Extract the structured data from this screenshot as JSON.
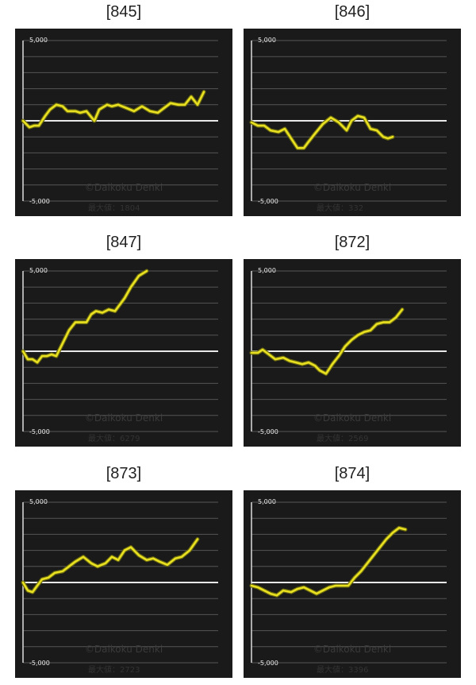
{
  "chart_data": [
    {
      "type": "line",
      "title": "[845]",
      "ylim": [
        -5000,
        5000
      ],
      "yticks": [
        "5,000",
        "-5,000"
      ],
      "watermark": "©Daikoku Denki",
      "max_label": "最大値：1804",
      "line_color": "#e8e020",
      "x": [
        0,
        8,
        14,
        20,
        28,
        34,
        42,
        50,
        56,
        66,
        72,
        80,
        90,
        96,
        106,
        112,
        120,
        130,
        140,
        150,
        160,
        170,
        178,
        186,
        196,
        204,
        212,
        220,
        228
      ],
      "y": [
        0,
        -400,
        -300,
        -300,
        300,
        700,
        1000,
        900,
        600,
        600,
        500,
        600,
        0,
        700,
        1000,
        900,
        1000,
        800,
        600,
        900,
        600,
        500,
        800,
        1100,
        1000,
        1000,
        1500,
        1000,
        1800
      ]
    },
    {
      "type": "line",
      "title": "[846]",
      "ylim": [
        -5000,
        5000
      ],
      "yticks": [
        "5,000",
        "-5,000"
      ],
      "watermark": "©Daikoku Denki",
      "max_label": "最大値：332",
      "line_color": "#e8e020",
      "x": [
        0,
        8,
        16,
        24,
        34,
        42,
        50,
        58,
        66,
        72,
        80,
        90,
        100,
        110,
        120,
        126,
        134,
        142,
        150,
        158,
        166,
        172,
        178
      ],
      "y": [
        -100,
        -300,
        -300,
        -600,
        -700,
        -500,
        -1100,
        -1700,
        -1700,
        -1300,
        -800,
        -200,
        200,
        -100,
        -600,
        0,
        300,
        200,
        -500,
        -600,
        -1000,
        -1100,
        -1000
      ]
    },
    {
      "type": "line",
      "title": "[847]",
      "ylim": [
        -5000,
        5000
      ],
      "yticks": [
        "5,000",
        "-5,000"
      ],
      "watermark": "©Daikoku Denki",
      "max_label": "最大値：6279",
      "line_color": "#e8e020",
      "x": [
        0,
        6,
        12,
        18,
        24,
        30,
        36,
        42,
        50,
        58,
        66,
        72,
        80,
        86,
        92,
        100,
        108,
        116,
        122,
        128,
        136,
        146,
        156
      ],
      "y": [
        0,
        -500,
        -500,
        -700,
        -300,
        -300,
        -200,
        -300,
        500,
        1300,
        1800,
        1800,
        1800,
        2300,
        2500,
        2400,
        2600,
        2500,
        2900,
        3300,
        4000,
        4700,
        5000
      ]
    },
    {
      "type": "line",
      "title": "[872]",
      "ylim": [
        -5000,
        5000
      ],
      "yticks": [
        "5,000",
        "-5,000"
      ],
      "watermark": "©Daikoku Denki",
      "max_label": "最大値：2569",
      "line_color": "#e8e020",
      "x": [
        0,
        8,
        14,
        22,
        30,
        40,
        48,
        56,
        64,
        72,
        80,
        86,
        94,
        102,
        110,
        118,
        126,
        134,
        142,
        150,
        158,
        166,
        174,
        182,
        190
      ],
      "y": [
        -100,
        -100,
        100,
        -200,
        -500,
        -400,
        -600,
        -700,
        -800,
        -700,
        -900,
        -1200,
        -1400,
        -800,
        -300,
        300,
        700,
        1000,
        1200,
        1300,
        1700,
        1800,
        1800,
        2100,
        2600
      ]
    },
    {
      "type": "line",
      "title": "[873]",
      "ylim": [
        -5000,
        5000
      ],
      "yticks": [
        "5,000",
        "-5,000"
      ],
      "watermark": "©Daikoku Denki",
      "max_label": "最大値：2723",
      "line_color": "#e8e020",
      "x": [
        0,
        6,
        12,
        18,
        24,
        32,
        40,
        50,
        58,
        66,
        76,
        86,
        94,
        104,
        112,
        120,
        128,
        136,
        146,
        156,
        164,
        172,
        182,
        192,
        200,
        210,
        220
      ],
      "y": [
        0,
        -500,
        -600,
        -200,
        200,
        300,
        600,
        700,
        1000,
        1300,
        1600,
        1200,
        1000,
        1200,
        1600,
        1400,
        2000,
        2200,
        1700,
        1400,
        1500,
        1300,
        1100,
        1500,
        1600,
        2000,
        2700
      ]
    },
    {
      "type": "line",
      "title": "[874]",
      "ylim": [
        -5000,
        5000
      ],
      "yticks": [
        "5,000",
        "-5,000"
      ],
      "watermark": "©Daikoku Denki",
      "max_label": "最大値：3396",
      "line_color": "#e8e020",
      "x": [
        0,
        8,
        16,
        24,
        32,
        40,
        50,
        58,
        66,
        74,
        82,
        90,
        98,
        106,
        114,
        122,
        130,
        138,
        146,
        154,
        162,
        170,
        178,
        186,
        194
      ],
      "y": [
        -200,
        -300,
        -500,
        -700,
        -800,
        -500,
        -600,
        -400,
        -300,
        -500,
        -700,
        -500,
        -300,
        -200,
        -200,
        -200,
        300,
        700,
        1200,
        1700,
        2200,
        2700,
        3100,
        3400,
        3300
      ]
    }
  ]
}
